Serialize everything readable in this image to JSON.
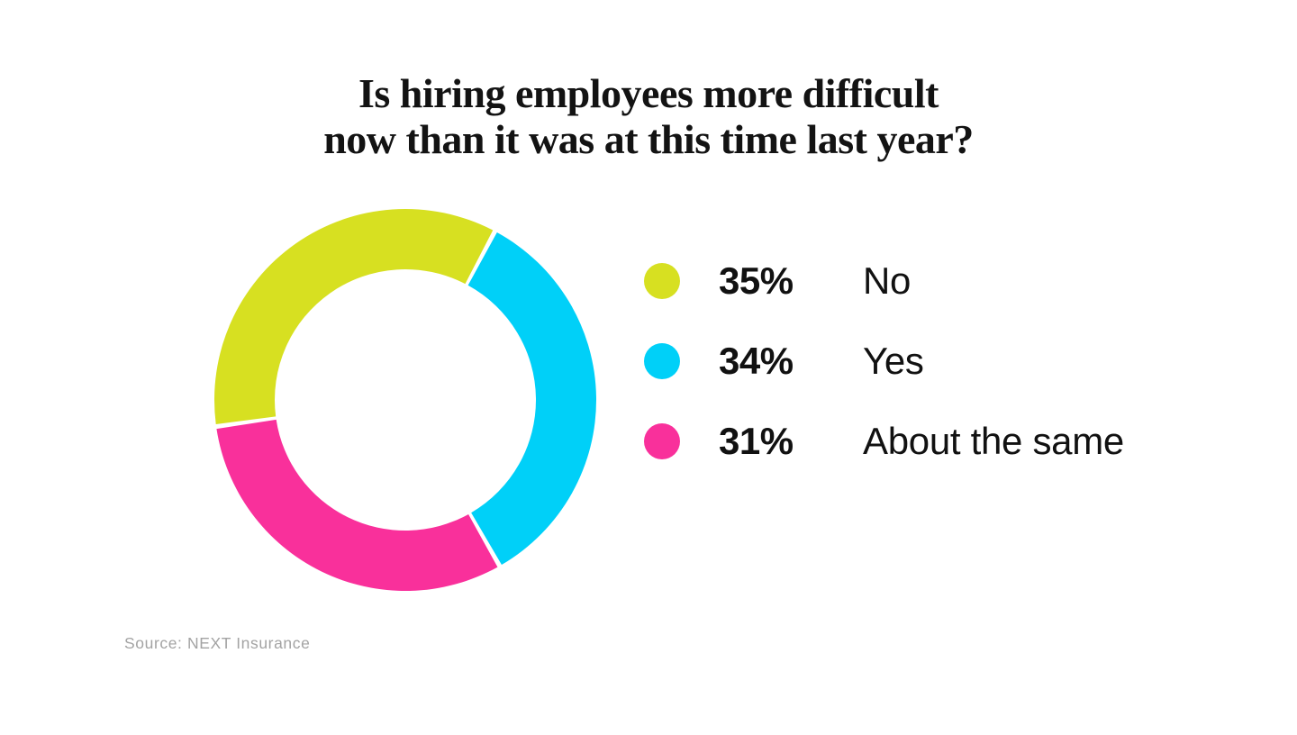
{
  "page": {
    "background": "#ffffff"
  },
  "title": {
    "line1": "Is hiring employees more difficult",
    "line2": "now than it was at this time last year?"
  },
  "source": {
    "text": "Source: NEXT Insurance"
  },
  "chart_data": {
    "type": "pie",
    "subtype": "donut",
    "title": "Is hiring employees more difficult now than it was at this time last year?",
    "categories": [
      "No",
      "Yes",
      "About the same"
    ],
    "values": [
      35,
      34,
      31
    ],
    "unit": "%",
    "colors": [
      "#d7e021",
      "#00d0f8",
      "#f9309b"
    ],
    "start_angle_deg": -98,
    "gap_deg": 1.4,
    "inner_radius_ratio": 0.684,
    "legend_position": "right",
    "legend": [
      {
        "value_label": "35%",
        "label": "No",
        "color": "#d7e021"
      },
      {
        "value_label": "34%",
        "label": "Yes",
        "color": "#00d0f8"
      },
      {
        "value_label": "31%",
        "label": "About the same",
        "color": "#f9309b"
      }
    ]
  }
}
